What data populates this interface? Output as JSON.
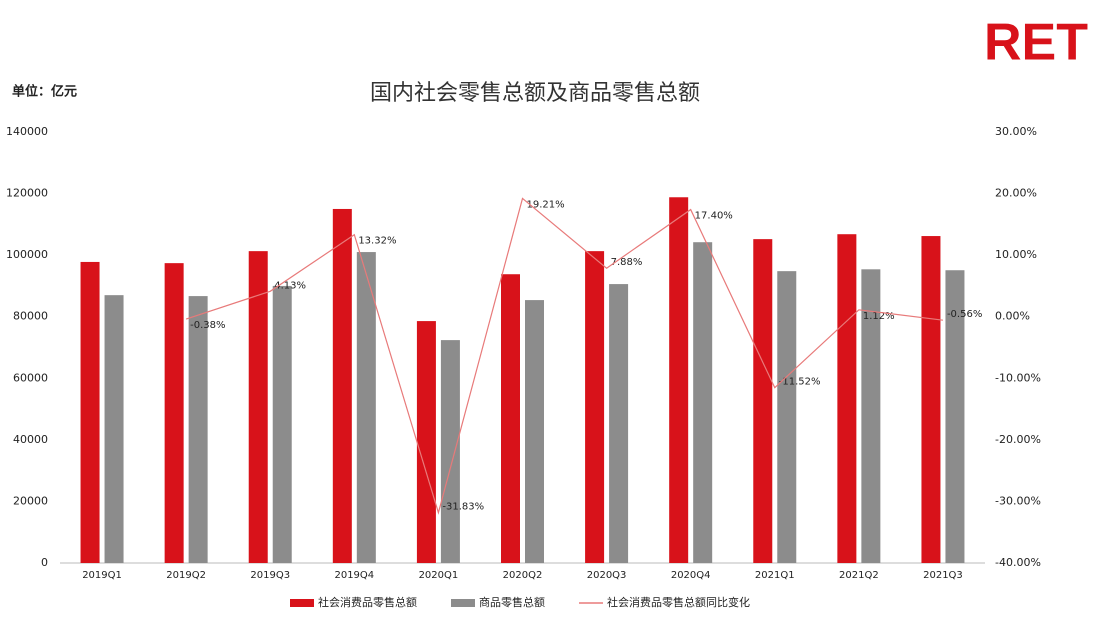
{
  "chart_data": {
    "type": "bar",
    "logo": "RET",
    "title": "国内社会零售总额及商品零售总额",
    "unit_label": "单位：亿元",
    "categories": [
      "2019Q1",
      "2019Q2",
      "2019Q3",
      "2019Q4",
      "2020Q1",
      "2020Q2",
      "2020Q3",
      "2020Q4",
      "2021Q1",
      "2021Q2",
      "2021Q3"
    ],
    "series": [
      {
        "name": "社会消费品零售总额",
        "type": "bar",
        "color": "#d8121a",
        "values": [
          97790,
          97400,
          101300,
          115000,
          78580,
          93800,
          101300,
          118800,
          105200,
          106800,
          106200
        ]
      },
      {
        "name": "商品零售总额",
        "type": "bar",
        "color": "#8c8c8c",
        "values": [
          87000,
          86700,
          90000,
          101000,
          72400,
          85400,
          90600,
          104200,
          94800,
          95400,
          95100
        ]
      },
      {
        "name": "社会消费品零售总额同比变化",
        "type": "line",
        "axis": "y2",
        "color": "#e87a7a",
        "values": [
          null,
          -0.38,
          4.13,
          13.32,
          -31.83,
          19.21,
          7.88,
          17.4,
          -11.52,
          1.12,
          -0.56
        ],
        "value_labels": [
          null,
          "-0.38%",
          "4.13%",
          "13.32%",
          "-31.83%",
          "19.21%",
          "7.88%",
          "17.40%",
          "-11.52%",
          "1.12%",
          "-0.56%"
        ]
      }
    ],
    "ylim": [
      0,
      140000
    ],
    "yticks": [
      0,
      20000,
      40000,
      60000,
      80000,
      100000,
      120000,
      140000
    ],
    "y2lim": [
      -40,
      30
    ],
    "y2ticks": [
      {
        "value": -40,
        "label": "-40.00%"
      },
      {
        "value": -30,
        "label": "-30.00%"
      },
      {
        "value": -20,
        "label": "-20.00%"
      },
      {
        "value": -10,
        "label": "-10.00%"
      },
      {
        "value": 0,
        "label": "0.00%"
      },
      {
        "value": 10,
        "label": "10.00%"
      },
      {
        "value": 20,
        "label": "20.00%"
      },
      {
        "value": 30,
        "label": "30.00%"
      }
    ],
    "legend": "bottom"
  }
}
